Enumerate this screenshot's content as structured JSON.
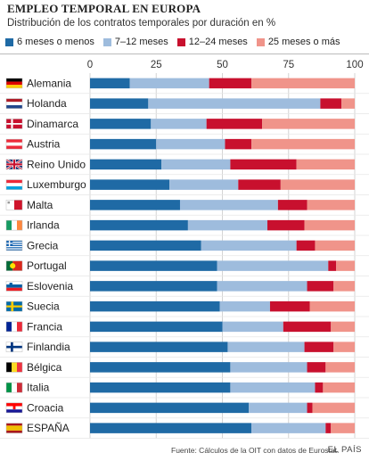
{
  "title": "EMPLEO TEMPORAL EN EUROPA",
  "subtitle": "Distribución de los contratos temporales por duración en %",
  "source": "Fuente: Cálculos de la OIT con datos de Eurostat.",
  "brand": "EL PAÍS",
  "colors": [
    "#1f6aa5",
    "#9ebcdd",
    "#c8102e",
    "#f0948a"
  ],
  "chart_data": {
    "type": "bar",
    "orientation": "horizontal",
    "stacked": true,
    "title": "EMPLEO TEMPORAL EN EUROPA",
    "subtitle": "Distribución de los contratos temporales por duración en %",
    "xlim": [
      0,
      100
    ],
    "xticks": [
      0,
      25,
      50,
      75,
      100
    ],
    "grid": true,
    "legend": "top",
    "categories": [
      "Alemania",
      "Holanda",
      "Dinamarca",
      "Austria",
      "Reino Unido",
      "Luxemburgo",
      "Malta",
      "Irlanda",
      "Grecia",
      "Portugal",
      "Eslovenia",
      "Suecia",
      "Francia",
      "Finlandia",
      "Bélgica",
      "Italia",
      "Croacia",
      "ESPAÑA"
    ],
    "flags": [
      "de",
      "nl",
      "dk",
      "at",
      "gb",
      "lu",
      "mt",
      "ie",
      "gr",
      "pt",
      "si",
      "se",
      "fr",
      "fi",
      "be",
      "it",
      "hr",
      "es"
    ],
    "series": [
      {
        "name": "6 meses o menos",
        "values": [
          15,
          22,
          23,
          25,
          27,
          30,
          34,
          37,
          42,
          48,
          48,
          49,
          50,
          52,
          53,
          53,
          60,
          61
        ]
      },
      {
        "name": "7–12 meses",
        "values": [
          30,
          65,
          21,
          26,
          26,
          26,
          37,
          30,
          36,
          42,
          34,
          19,
          23,
          29,
          29,
          32,
          22,
          28
        ]
      },
      {
        "name": "12–24 meses",
        "values": [
          16,
          8,
          21,
          10,
          25,
          16,
          11,
          14,
          7,
          3,
          10,
          15,
          18,
          11,
          7,
          3,
          2,
          2
        ]
      },
      {
        "name": "25 meses o más",
        "values": [
          39,
          5,
          35,
          39,
          22,
          28,
          18,
          19,
          15,
          7,
          8,
          17,
          9,
          8,
          11,
          12,
          16,
          9
        ]
      }
    ]
  }
}
